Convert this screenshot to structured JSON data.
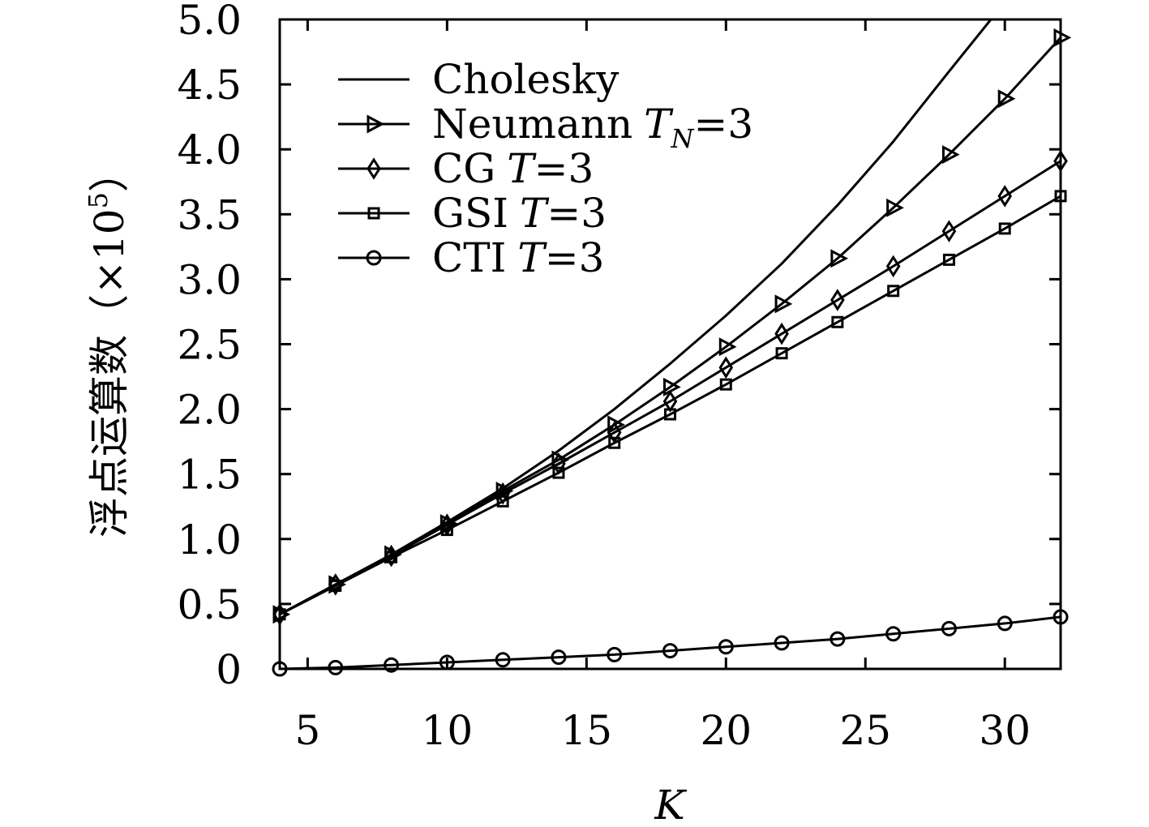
{
  "chart_data": {
    "type": "line",
    "xlabel": "K",
    "ylabel": "浮点运算数（×10⁵）",
    "xlim": [
      4,
      32
    ],
    "ylim": [
      0,
      5.0
    ],
    "xticks": [
      5,
      10,
      15,
      20,
      25,
      30
    ],
    "xtick_labels": [
      "5",
      "10",
      "15",
      "20",
      "25",
      "30"
    ],
    "yticks": [
      0,
      0.5,
      1.0,
      1.5,
      2.0,
      2.5,
      3.0,
      3.5,
      4.0,
      4.5,
      5.0
    ],
    "ytick_labels": [
      "0",
      "0.5",
      "1.0",
      "1.5",
      "2.0",
      "2.5",
      "3.0",
      "3.5",
      "4.0",
      "4.5",
      "5.0"
    ],
    "grid": false,
    "legend_position": "top-left",
    "x": [
      4,
      6,
      8,
      10,
      12,
      14,
      16,
      18,
      20,
      22,
      24,
      26,
      28,
      30,
      32
    ],
    "series": [
      {
        "name": "Cholesky",
        "marker": "none",
        "x": [
          4,
          6,
          8,
          10,
          12,
          14,
          16,
          18,
          20,
          22,
          24,
          26,
          28,
          29.5
        ],
        "values": [
          0.42,
          0.64,
          0.88,
          1.13,
          1.39,
          1.68,
          2.0,
          2.35,
          2.72,
          3.12,
          3.57,
          4.06,
          4.6,
          5.0
        ]
      },
      {
        "name": "Neumann T_N=3",
        "marker": "triangle-right",
        "values": [
          0.42,
          0.65,
          0.88,
          1.12,
          1.37,
          1.61,
          1.88,
          2.17,
          2.48,
          2.81,
          3.16,
          3.55,
          3.96,
          4.39,
          4.86
        ]
      },
      {
        "name": "CG T=3",
        "marker": "diamond",
        "values": [
          0.42,
          0.65,
          0.87,
          1.11,
          1.35,
          1.58,
          1.82,
          2.06,
          2.32,
          2.58,
          2.84,
          3.1,
          3.37,
          3.64,
          3.91
        ]
      },
      {
        "name": "GSI T=3",
        "marker": "square",
        "values": [
          0.42,
          0.64,
          0.86,
          1.07,
          1.29,
          1.51,
          1.74,
          1.96,
          2.19,
          2.43,
          2.67,
          2.91,
          3.15,
          3.39,
          3.64
        ]
      },
      {
        "name": "CTI T=3",
        "marker": "circle",
        "values": [
          0.0,
          0.01,
          0.03,
          0.05,
          0.07,
          0.09,
          0.11,
          0.14,
          0.17,
          0.2,
          0.23,
          0.27,
          0.31,
          0.35,
          0.4
        ]
      }
    ]
  },
  "legend": [
    {
      "label": "Cholesky",
      "sub": "",
      "suffix": ""
    },
    {
      "label": "Neumann",
      "sub": "N",
      "suffix": "T",
      "tail": "=3"
    },
    {
      "label": "CG",
      "sub": "",
      "suffix": "T",
      "tail": "=3"
    },
    {
      "label": "GSI",
      "sub": "",
      "suffix": "T",
      "tail": "=3"
    },
    {
      "label": "CTI",
      "sub": "",
      "suffix": "T",
      "tail": "=3"
    }
  ],
  "axis_titles": {
    "x": "K",
    "y_main": "浮点运算数（×10",
    "y_sup": "5",
    "y_close": "）"
  }
}
